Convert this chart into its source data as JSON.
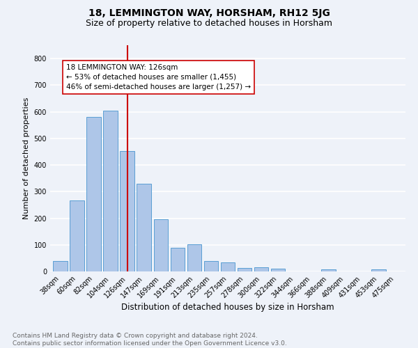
{
  "title": "18, LEMMINGTON WAY, HORSHAM, RH12 5JG",
  "subtitle": "Size of property relative to detached houses in Horsham",
  "xlabel": "Distribution of detached houses by size in Horsham",
  "ylabel": "Number of detached properties",
  "footer": "Contains HM Land Registry data © Crown copyright and database right 2024.\nContains public sector information licensed under the Open Government Licence v3.0.",
  "categories": [
    "38sqm",
    "60sqm",
    "82sqm",
    "104sqm",
    "126sqm",
    "147sqm",
    "169sqm",
    "191sqm",
    "213sqm",
    "235sqm",
    "257sqm",
    "278sqm",
    "300sqm",
    "322sqm",
    "344sqm",
    "366sqm",
    "388sqm",
    "409sqm",
    "431sqm",
    "453sqm",
    "475sqm"
  ],
  "values": [
    38,
    267,
    580,
    605,
    452,
    330,
    195,
    88,
    103,
    38,
    35,
    14,
    15,
    10,
    0,
    0,
    8,
    0,
    0,
    8,
    0
  ],
  "bar_color": "#aec6e8",
  "bar_edge_color": "#5a9fd4",
  "vline_x": 4,
  "vline_color": "#cc0000",
  "annotation_text": "18 LEMMINGTON WAY: 126sqm\n← 53% of detached houses are smaller (1,455)\n46% of semi-detached houses are larger (1,257) →",
  "annotation_box_color": "#ffffff",
  "annotation_box_edge": "#cc0000",
  "ylim": [
    0,
    850
  ],
  "yticks": [
    0,
    100,
    200,
    300,
    400,
    500,
    600,
    700,
    800
  ],
  "bg_color": "#eef2f9",
  "plot_bg_color": "#eef2f9",
  "grid_color": "#ffffff",
  "title_fontsize": 10,
  "subtitle_fontsize": 9,
  "xlabel_fontsize": 8.5,
  "ylabel_fontsize": 8,
  "tick_fontsize": 7,
  "footer_fontsize": 6.5,
  "annotation_fontsize": 7.5
}
